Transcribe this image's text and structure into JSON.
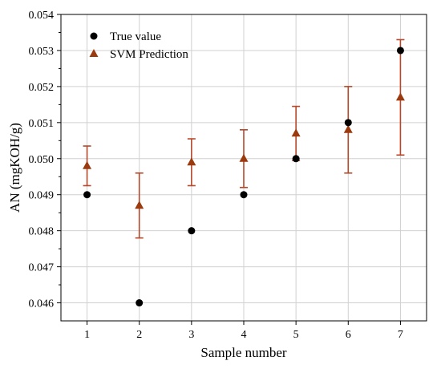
{
  "chart_data": {
    "type": "scatter",
    "xlabel": "Sample number",
    "ylabel": "AN (mgKOH/g)",
    "xlim": [
      0.5,
      7.5
    ],
    "ylim": [
      0.0455,
      0.054
    ],
    "x_ticks": [
      "1",
      "2",
      "3",
      "4",
      "5",
      "6",
      "7"
    ],
    "y_ticks": [
      "0.046",
      "0.047",
      "0.048",
      "0.049",
      "0.050",
      "0.051",
      "0.052",
      "0.053",
      "0.054"
    ],
    "grid": true,
    "legend_position": "top-left",
    "series": [
      {
        "name": "True value",
        "marker": "circle",
        "color": "#000000",
        "x": [
          1,
          2,
          3,
          4,
          5,
          6,
          7
        ],
        "y": [
          0.049,
          0.046,
          0.048,
          0.049,
          0.05,
          0.051,
          0.053
        ]
      },
      {
        "name": "SVM Prediction",
        "marker": "triangle",
        "color": "#9b3a0f",
        "error_color": "#b5472a",
        "x": [
          1,
          2,
          3,
          4,
          5,
          6,
          7
        ],
        "y": [
          0.0498,
          0.0487,
          0.0499,
          0.05,
          0.0507,
          0.0508,
          0.0517
        ],
        "error_low": [
          0.04925,
          0.0478,
          0.04925,
          0.0492,
          0.04995,
          0.0496,
          0.0501
        ],
        "error_high": [
          0.05035,
          0.0496,
          0.05055,
          0.0508,
          0.05145,
          0.052,
          0.0533
        ]
      }
    ]
  }
}
